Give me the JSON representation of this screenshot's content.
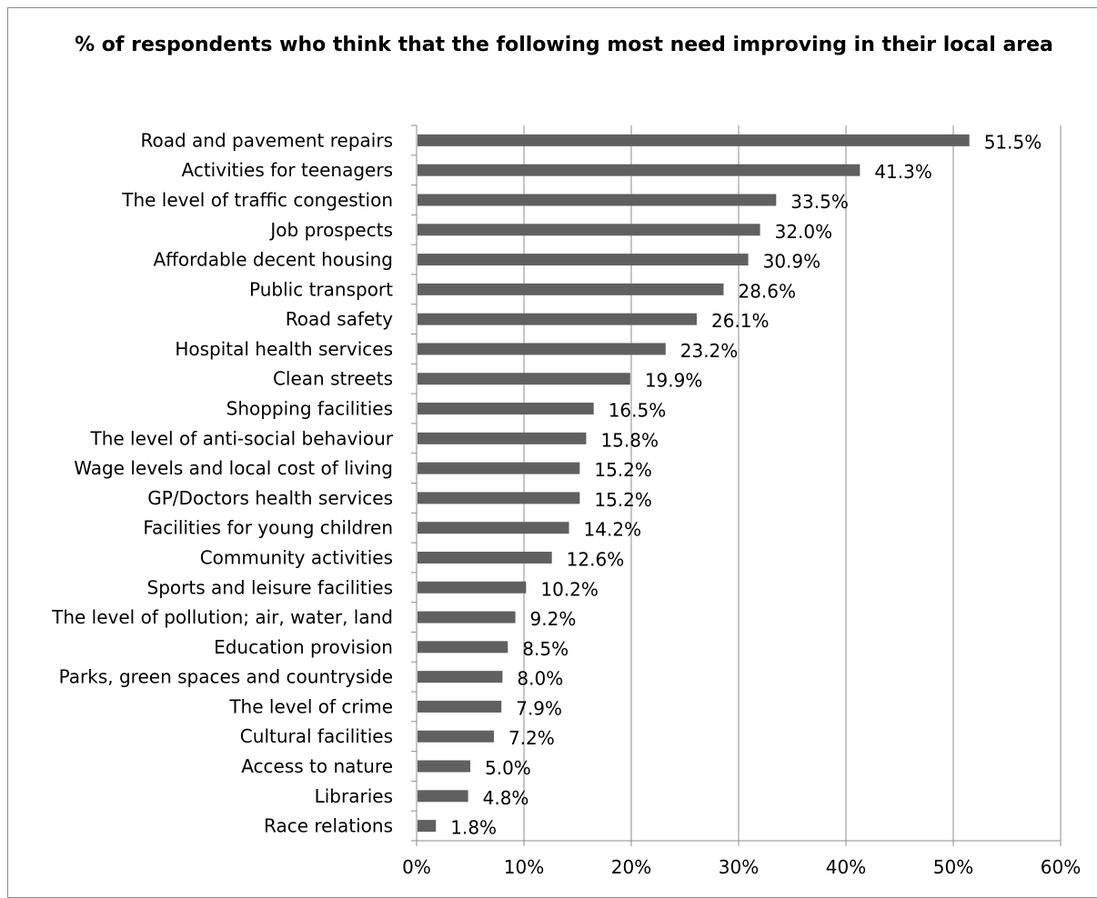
{
  "chart_data": {
    "type": "bar",
    "orientation": "horizontal",
    "title": "% of respondents who think that the following most need improving in their local area",
    "xlabel": "",
    "ylabel": "",
    "xlim": [
      0,
      60
    ],
    "x_ticks": [
      "0%",
      "10%",
      "20%",
      "30%",
      "40%",
      "50%",
      "60%"
    ],
    "grid": "vertical",
    "legend": "none",
    "bar_color": "#606060",
    "categories": [
      "Road and pavement repairs",
      "Activities for teenagers",
      "The level of traffic congestion",
      "Job prospects",
      "Affordable decent housing",
      "Public transport",
      "Road safety",
      "Hospital health services",
      "Clean streets",
      "Shopping facilities",
      "The level of anti-social behaviour",
      "Wage levels and local cost of living",
      "GP/Doctors health services",
      "Facilities for young children",
      "Community activities",
      "Sports and leisure facilities",
      "The level of pollution; air, water, land",
      "Education provision",
      "Parks, green spaces and countryside",
      "The level of crime",
      "Cultural facilities",
      "Access to nature",
      "Libraries",
      "Race relations"
    ],
    "values": [
      51.5,
      41.3,
      33.5,
      32.0,
      30.9,
      28.6,
      26.1,
      23.2,
      19.9,
      16.5,
      15.8,
      15.2,
      15.2,
      14.2,
      12.6,
      10.2,
      9.2,
      8.5,
      8.0,
      7.9,
      7.2,
      5.0,
      4.8,
      1.8
    ],
    "data_labels": [
      "51.5%",
      "41.3%",
      "33.5%",
      "32.0%",
      "30.9%",
      "28.6%",
      "26.1%",
      "23.2%",
      "19.9%",
      "16.5%",
      "15.8%",
      "15.2%",
      "15.2%",
      "14.2%",
      "12.6%",
      "10.2%",
      "9.2%",
      "8.5%",
      "8.0%",
      "7.9%",
      "7.2%",
      "5.0%",
      "4.8%",
      "1.8%"
    ]
  }
}
